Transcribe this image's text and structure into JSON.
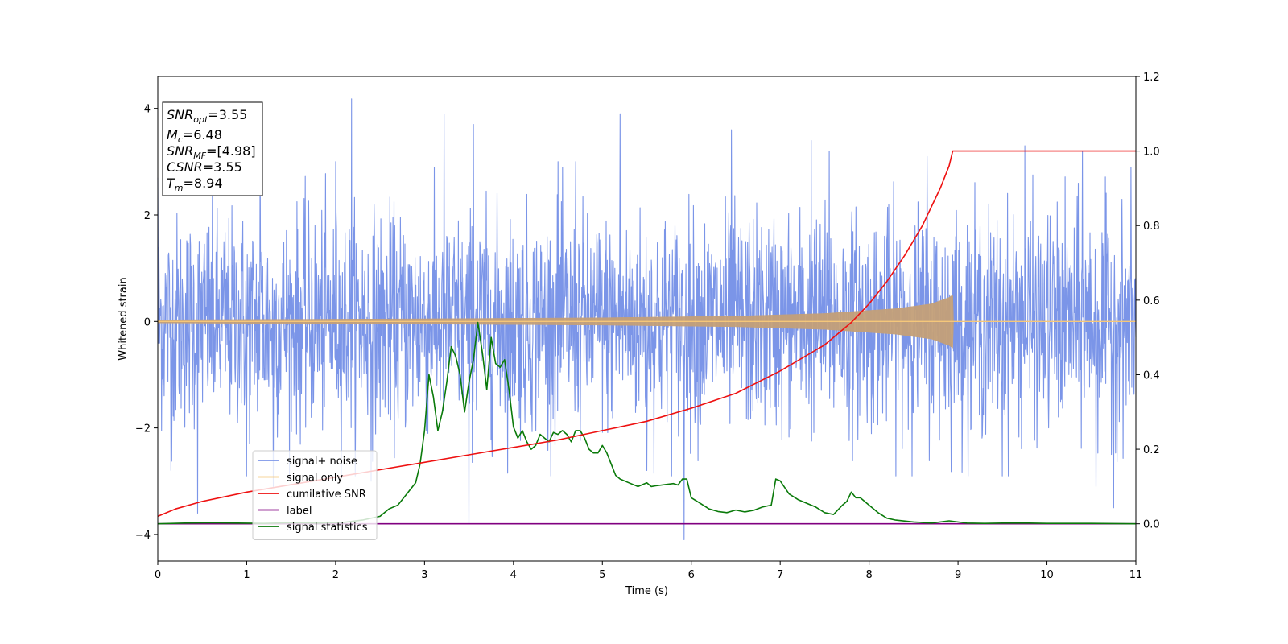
{
  "chart_data": {
    "type": "line",
    "xlabel": "Time (s)",
    "ylabel": "Whitened strain",
    "xlim": [
      0,
      11
    ],
    "ylim_left": [
      -4.5,
      4.6
    ],
    "ylim_right": [
      -0.1,
      1.2
    ],
    "x_ticks": [
      0,
      1,
      2,
      3,
      4,
      5,
      6,
      7,
      8,
      9,
      10,
      11
    ],
    "x_tick_labels": [
      "0",
      "1",
      "2",
      "3",
      "4",
      "5",
      "6",
      "7",
      "8",
      "9",
      "10",
      "11"
    ],
    "y_ticks_left": [
      -4,
      -2,
      0,
      2,
      4
    ],
    "y_tick_labels_left": [
      "−4",
      "−2",
      "0",
      "2",
      "4"
    ],
    "y_ticks_right": [
      0.0,
      0.2,
      0.4,
      0.6,
      0.8,
      1.0,
      1.2
    ],
    "y_tick_labels_right": [
      "0.0",
      "0.2",
      "0.4",
      "0.6",
      "0.8",
      "1.0",
      "1.2"
    ],
    "grid": false,
    "legend": {
      "placement": "lower-left",
      "entries": [
        {
          "label": "signal+ noise",
          "color": "#7b95e8"
        },
        {
          "label": "signal only",
          "color": "#f5c77a"
        },
        {
          "label": "cumilative SNR",
          "color": "#ee1111"
        },
        {
          "label": "label",
          "color": "#800080"
        },
        {
          "label": "signal statistics",
          "color": "#0a7a0a"
        }
      ]
    },
    "info_box": [
      {
        "var": "SNR",
        "sub": "opt",
        "value": "=3.55"
      },
      {
        "var": "M",
        "sub": "c",
        "value": "=6.48"
      },
      {
        "var": "SNR",
        "sub": "MF",
        "value": "=[4.98]"
      },
      {
        "var": "CSNR",
        "sub": "",
        "value": "=3.55"
      },
      {
        "var": "T",
        "sub": "m",
        "value": "=8.94"
      }
    ],
    "series": [
      {
        "name": "signal+ noise",
        "axis": "left",
        "color": "#7b95e8",
        "style": "dense noise, typical range -2.5 to 2.5, extremes about -4.1 to 4.2",
        "spikes": [
          [
            0.0,
            2.7
          ],
          [
            0.15,
            -2.8
          ],
          [
            0.45,
            -3.6
          ],
          [
            1.0,
            -2.9
          ],
          [
            1.15,
            3.5
          ],
          [
            1.3,
            -3.1
          ],
          [
            2.0,
            3.0
          ],
          [
            2.18,
            4.18
          ],
          [
            2.4,
            -3.0
          ],
          [
            3.22,
            3.9
          ],
          [
            3.5,
            -3.8
          ],
          [
            3.55,
            3.7
          ],
          [
            4.5,
            3.0
          ],
          [
            4.7,
            3.0
          ],
          [
            5.2,
            3.9
          ],
          [
            5.5,
            -2.8
          ],
          [
            5.92,
            -4.1
          ],
          [
            6.45,
            3.6
          ],
          [
            7.35,
            3.4
          ],
          [
            7.55,
            3.2
          ],
          [
            8.65,
            3.1
          ],
          [
            9.5,
            -2.9
          ],
          [
            9.75,
            3.3
          ],
          [
            10.4,
            3.2
          ],
          [
            10.55,
            -3.1
          ],
          [
            10.75,
            -3.5
          ]
        ]
      },
      {
        "name": "signal only",
        "axis": "left",
        "color": "#f5c77a",
        "style": "chirp: amplitude grows toward merger at 8.94 s, zero afterwards",
        "envelope": [
          [
            0.0,
            0.03
          ],
          [
            3.0,
            0.05
          ],
          [
            5.0,
            0.07
          ],
          [
            6.5,
            0.1
          ],
          [
            7.5,
            0.15
          ],
          [
            8.3,
            0.24
          ],
          [
            8.7,
            0.33
          ],
          [
            8.9,
            0.45
          ],
          [
            8.94,
            0.5
          ],
          [
            8.95,
            0.0
          ],
          [
            11.0,
            0.0
          ]
        ]
      },
      {
        "name": "cumilative SNR",
        "axis": "right",
        "color": "#ee1111",
        "x": [
          0.0,
          0.2,
          0.5,
          1.0,
          1.5,
          2.0,
          2.5,
          3.0,
          3.5,
          4.0,
          4.5,
          5.0,
          5.5,
          6.0,
          6.5,
          7.0,
          7.5,
          7.8,
          8.0,
          8.2,
          8.4,
          8.6,
          8.8,
          8.9,
          8.94,
          11.0
        ],
        "y": [
          0.02,
          0.04,
          0.06,
          0.085,
          0.105,
          0.125,
          0.145,
          0.165,
          0.185,
          0.205,
          0.225,
          0.25,
          0.275,
          0.31,
          0.35,
          0.41,
          0.48,
          0.54,
          0.59,
          0.65,
          0.72,
          0.8,
          0.9,
          0.96,
          1.0,
          1.0
        ]
      },
      {
        "name": "label",
        "axis": "right",
        "color": "#800080",
        "x": [
          0,
          11
        ],
        "y": [
          0.0,
          0.0
        ]
      },
      {
        "name": "signal statistics",
        "axis": "right",
        "color": "#0a7a0a",
        "x": [
          0.0,
          0.3,
          0.6,
          0.9,
          1.2,
          1.5,
          1.8,
          2.1,
          2.3,
          2.5,
          2.6,
          2.7,
          2.8,
          2.9,
          2.95,
          3.0,
          3.05,
          3.1,
          3.15,
          3.2,
          3.25,
          3.3,
          3.35,
          3.4,
          3.45,
          3.5,
          3.55,
          3.6,
          3.65,
          3.7,
          3.75,
          3.8,
          3.85,
          3.9,
          3.95,
          4.0,
          4.05,
          4.1,
          4.15,
          4.2,
          4.25,
          4.3,
          4.35,
          4.4,
          4.45,
          4.5,
          4.55,
          4.6,
          4.65,
          4.7,
          4.75,
          4.8,
          4.85,
          4.9,
          4.95,
          5.0,
          5.05,
          5.1,
          5.15,
          5.2,
          5.3,
          5.4,
          5.5,
          5.55,
          5.6,
          5.7,
          5.8,
          5.85,
          5.9,
          5.95,
          6.0,
          6.1,
          6.2,
          6.3,
          6.4,
          6.5,
          6.6,
          6.7,
          6.8,
          6.9,
          6.95,
          7.0,
          7.1,
          7.2,
          7.3,
          7.4,
          7.5,
          7.6,
          7.7,
          7.75,
          7.8,
          7.85,
          7.9,
          8.0,
          8.1,
          8.2,
          8.3,
          8.5,
          8.7,
          8.9,
          9.1,
          9.3,
          9.5,
          9.8,
          10.0,
          10.5,
          11.0
        ],
        "y": [
          0.0,
          0.002,
          0.003,
          0.002,
          0.001,
          0.003,
          0.002,
          0.004,
          0.01,
          0.02,
          0.04,
          0.05,
          0.08,
          0.11,
          0.16,
          0.25,
          0.4,
          0.34,
          0.25,
          0.3,
          0.38,
          0.475,
          0.45,
          0.4,
          0.3,
          0.38,
          0.44,
          0.54,
          0.46,
          0.36,
          0.5,
          0.43,
          0.42,
          0.44,
          0.36,
          0.26,
          0.23,
          0.25,
          0.22,
          0.2,
          0.21,
          0.24,
          0.23,
          0.22,
          0.245,
          0.24,
          0.25,
          0.24,
          0.22,
          0.25,
          0.25,
          0.23,
          0.2,
          0.19,
          0.19,
          0.21,
          0.19,
          0.16,
          0.13,
          0.12,
          0.11,
          0.1,
          0.11,
          0.1,
          0.102,
          0.105,
          0.108,
          0.104,
          0.12,
          0.12,
          0.07,
          0.055,
          0.04,
          0.033,
          0.03,
          0.037,
          0.032,
          0.036,
          0.045,
          0.05,
          0.12,
          0.115,
          0.08,
          0.065,
          0.055,
          0.045,
          0.03,
          0.025,
          0.05,
          0.06,
          0.085,
          0.07,
          0.07,
          0.05,
          0.03,
          0.015,
          0.01,
          0.005,
          0.002,
          0.008,
          0.002,
          0.001,
          0.002,
          0.002,
          0.001,
          0.001,
          0.0
        ]
      }
    ]
  }
}
